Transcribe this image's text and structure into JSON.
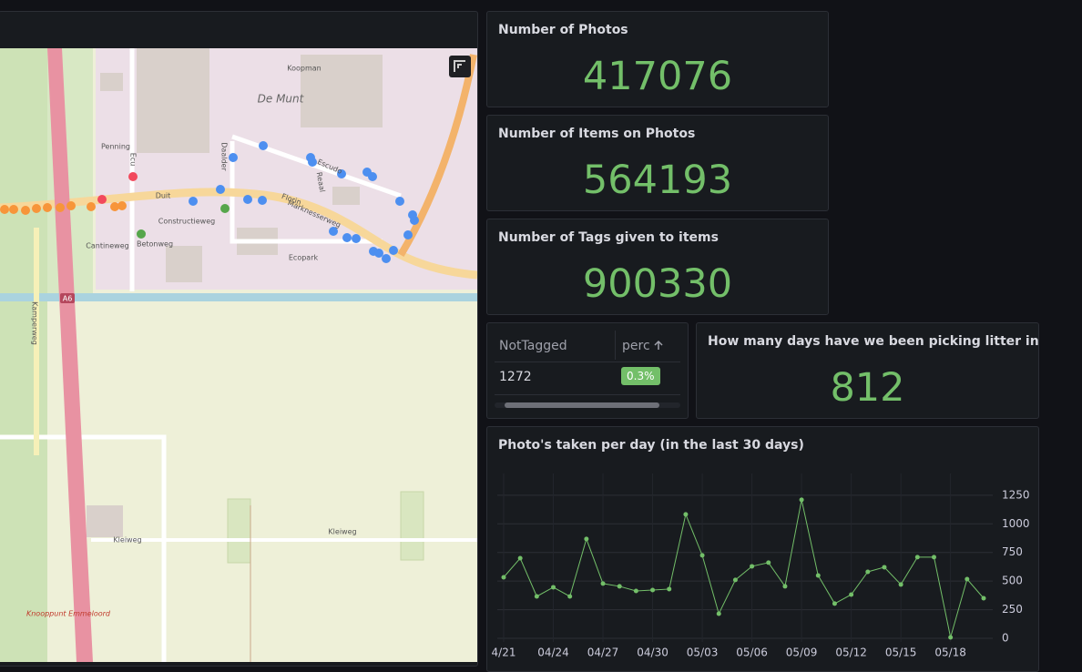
{
  "stats": [
    {
      "title": "Number of Photos",
      "value": 417076
    },
    {
      "title": "Number of Items on Photos",
      "value": 564193
    },
    {
      "title": "Number of Tags given to items",
      "value": 900330
    }
  ],
  "table": {
    "headers": [
      "NotTagged",
      "perc"
    ],
    "rows": [
      [
        "1272",
        "0.3%"
      ]
    ]
  },
  "days": {
    "title": "How many days have we been picking litter in a...",
    "value": 812
  },
  "map": {
    "labels": [
      "Koopman",
      "De Munt",
      "Penning",
      "Duit",
      "Constructieweg",
      "Cantineweg",
      "Betonweg",
      "Marknesserweg",
      "Escudo",
      "Florin",
      "Reaal",
      "Daalder",
      "Ecopark",
      "A6",
      "Kamperweg",
      "Kleiweg",
      "Kleiweg",
      "Knooppunt Emmeloord",
      "Ecu"
    ]
  },
  "chart_data": {
    "type": "line",
    "title": "Photo's taken per day (in the last 30 days)",
    "categories": [
      "4/21",
      null,
      null,
      "04/24",
      null,
      null,
      "04/27",
      null,
      null,
      "04/30",
      null,
      null,
      "05/03",
      null,
      null,
      "05/06",
      null,
      null,
      "05/09",
      null,
      null,
      "05/12",
      null,
      null,
      "05/15",
      null,
      null,
      "05/18",
      null,
      null
    ],
    "values": [
      533,
      700,
      366,
      446,
      366,
      868,
      478,
      454,
      414,
      422,
      430,
      1083,
      725,
      215,
      510,
      629,
      661,
      454,
      1210,
      549,
      303,
      382,
      581,
      621,
      470,
      709,
      709,
      8,
      517,
      350
    ],
    "color": "#73bf69",
    "ylim": [
      0,
      1440
    ],
    "yticks": [
      0,
      250,
      500,
      750,
      1000,
      1250
    ],
    "grid": true
  }
}
